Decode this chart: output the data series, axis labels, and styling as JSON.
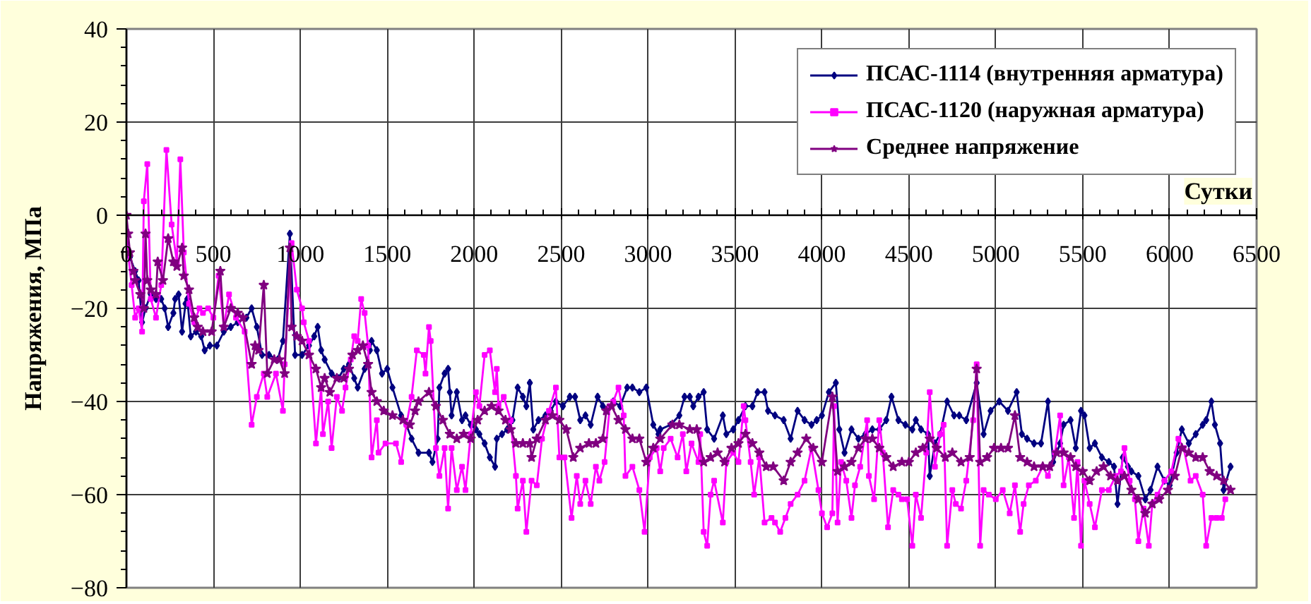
{
  "chart_data": {
    "type": "line",
    "xlabel": "Сутки",
    "ylabel": "Напряжения, МПа",
    "xlim": [
      0,
      6500
    ],
    "ylim": [
      -80,
      40
    ],
    "xticks": [
      0,
      500,
      1000,
      1500,
      2000,
      2500,
      3000,
      3500,
      4000,
      4500,
      5000,
      5500,
      6000,
      6500
    ],
    "yticks": [
      -80,
      -60,
      -40,
      -20,
      0,
      20,
      40
    ],
    "grid": true,
    "legend": "top right",
    "line_style": "solid",
    "series": [
      {
        "name": "ПСАС-1114 (внутренняя арматура)",
        "color": "#000080",
        "marker": "diamond",
        "x": [
          0,
          20,
          50,
          70,
          90,
          110,
          140,
          170,
          200,
          220,
          240,
          270,
          280,
          300,
          320,
          340,
          350,
          370,
          400,
          430,
          450,
          480,
          520,
          560,
          600,
          640,
          690,
          720,
          750,
          780,
          820,
          870,
          900,
          940,
          970,
          1010,
          1050,
          1080,
          1100,
          1120,
          1140,
          1180,
          1220,
          1250,
          1280,
          1310,
          1330,
          1370,
          1400,
          1410,
          1440,
          1470,
          1500,
          1530,
          1580,
          1610,
          1640,
          1680,
          1740,
          1760,
          1790,
          1800,
          1830,
          1850,
          1860,
          1870,
          1900,
          1930,
          1950,
          1980,
          2010,
          2030,
          2060,
          2090,
          2120,
          2130,
          2160,
          2190,
          2220,
          2250,
          2280,
          2300,
          2320,
          2340,
          2370,
          2410,
          2440,
          2470,
          2510,
          2550,
          2580,
          2610,
          2640,
          2670,
          2710,
          2740,
          2760,
          2800,
          2840,
          2880,
          2910,
          2950,
          2990,
          3030,
          3060,
          3070,
          3130,
          3180,
          3210,
          3240,
          3260,
          3290,
          3320,
          3340,
          3380,
          3430,
          3450,
          3490,
          3520,
          3560,
          3600,
          3630,
          3670,
          3690,
          3730,
          3780,
          3820,
          3860,
          3900,
          3940,
          3970,
          4000,
          4040,
          4080,
          4100,
          4130,
          4170,
          4210,
          4250,
          4290,
          4330,
          4370,
          4400,
          4440,
          4480,
          4520,
          4540,
          4570,
          4610,
          4620,
          4650,
          4680,
          4720,
          4760,
          4790,
          4830,
          4890,
          4930,
          4970,
          5020,
          5070,
          5120,
          5150,
          5180,
          5220,
          5260,
          5300,
          5330,
          5370,
          5390,
          5430,
          5460,
          5490,
          5510,
          5540,
          5570,
          5610,
          5650,
          5680,
          5700,
          5730,
          5760,
          5780,
          5820,
          5860,
          5890,
          5930,
          5970,
          6000,
          6040,
          6070,
          6110,
          6150,
          6190,
          6210,
          6240,
          6260,
          6290,
          6310,
          6350
        ],
        "values": [
          -6,
          -9,
          -12,
          -14,
          -23,
          -20,
          -17,
          -18,
          -18,
          -20,
          -24,
          -21,
          -18,
          -17,
          -25,
          -19,
          -18,
          -26,
          -25,
          -26,
          -29,
          -28,
          -28,
          -25,
          -24,
          -23,
          -22,
          -20,
          -24,
          -30,
          -30,
          -31,
          -27,
          -4,
          -30,
          -30,
          -28,
          -26,
          -24,
          -29,
          -31,
          -34,
          -35,
          -33,
          -32,
          -35,
          -37,
          -33,
          -29,
          -27,
          -29,
          -34,
          -33,
          -37,
          -43,
          -45,
          -48,
          -51,
          -51,
          -53,
          -48,
          -37,
          -34,
          -33,
          -38,
          -43,
          -38,
          -44,
          -43,
          -45,
          -46,
          -47,
          -49,
          -52,
          -54,
          -48,
          -47,
          -46,
          -44,
          -37,
          -39,
          -41,
          -36,
          -46,
          -44,
          -43,
          -42,
          -40,
          -41,
          -39,
          -39,
          -44,
          -43,
          -45,
          -39,
          -41,
          -42,
          -40,
          -41,
          -37,
          -37,
          -38,
          -37,
          -45,
          -47,
          -46,
          -45,
          -43,
          -39,
          -39,
          -41,
          -39,
          -38,
          -46,
          -48,
          -43,
          -47,
          -46,
          -44,
          -41,
          -41,
          -38,
          -38,
          -42,
          -43,
          -44,
          -48,
          -42,
          -44,
          -45,
          -44,
          -43,
          -38,
          -36,
          -46,
          -51,
          -46,
          -48,
          -47,
          -46,
          -46,
          -44,
          -39,
          -44,
          -45,
          -46,
          -44,
          -46,
          -47,
          -56,
          -49,
          -47,
          -40,
          -43,
          -43,
          -44,
          -36,
          -47,
          -42,
          -40,
          -42,
          -38,
          -47,
          -48,
          -49,
          -49,
          -40,
          -53,
          -49,
          -45,
          -44,
          -50,
          -42,
          -43,
          -50,
          -49,
          -52,
          -53,
          -54,
          -62,
          -52,
          -54,
          -55,
          -56,
          -61,
          -59,
          -54,
          -57,
          -58,
          -51,
          -46,
          -49,
          -47,
          -45,
          -44,
          -40,
          -45,
          -49,
          -59,
          -54
        ]
      },
      {
        "name": "ПСАС-1120 (наружная арматура)",
        "color": "#ff00ff",
        "marker": "square",
        "x": [
          0,
          30,
          50,
          70,
          90,
          100,
          120,
          140,
          170,
          200,
          230,
          260,
          290,
          310,
          330,
          360,
          390,
          420,
          440,
          470,
          500,
          530,
          560,
          590,
          630,
          680,
          720,
          750,
          790,
          810,
          860,
          900,
          910,
          950,
          980,
          1010,
          1020,
          1050,
          1090,
          1120,
          1130,
          1160,
          1180,
          1210,
          1240,
          1260,
          1290,
          1310,
          1330,
          1350,
          1370,
          1390,
          1410,
          1440,
          1450,
          1490,
          1550,
          1580,
          1610,
          1640,
          1670,
          1710,
          1720,
          1740,
          1750,
          1780,
          1800,
          1830,
          1850,
          1870,
          1900,
          1930,
          1950,
          1980,
          2010,
          2030,
          2060,
          2090,
          2120,
          2130,
          2140,
          2170,
          2210,
          2240,
          2250,
          2280,
          2300,
          2330,
          2360,
          2390,
          2430,
          2470,
          2490,
          2520,
          2560,
          2590,
          2610,
          2640,
          2670,
          2700,
          2720,
          2750,
          2780,
          2800,
          2830,
          2860,
          2870,
          2910,
          2950,
          2980,
          3010,
          3050,
          3070,
          3090,
          3130,
          3170,
          3200,
          3220,
          3250,
          3290,
          3300,
          3320,
          3340,
          3360,
          3380,
          3430,
          3450,
          3490,
          3520,
          3550,
          3560,
          3590,
          3610,
          3640,
          3670,
          3710,
          3730,
          3760,
          3790,
          3820,
          3860,
          3900,
          3940,
          3980,
          4000,
          4030,
          4060,
          4070,
          4090,
          4110,
          4140,
          4170,
          4190,
          4220,
          4260,
          4270,
          4300,
          4330,
          4350,
          4380,
          4410,
          4440,
          4460,
          4490,
          4520,
          4540,
          4570,
          4600,
          4620,
          4650,
          4680,
          4700,
          4720,
          4750,
          4770,
          4800,
          4830,
          4870,
          4890,
          4910,
          4930,
          4960,
          5000,
          5040,
          5080,
          5110,
          5140,
          5160,
          5190,
          5230,
          5270,
          5300,
          5340,
          5370,
          5390,
          5420,
          5450,
          5470,
          5490,
          5510,
          5540,
          5570,
          5610,
          5650,
          5690,
          5720,
          5740,
          5770,
          5800,
          5820,
          5850,
          5880,
          5900,
          5930,
          5970,
          6010,
          6050,
          6080,
          6120,
          6150,
          6190,
          6210,
          6240,
          6270,
          6300,
          6320
        ],
        "values": [
          -5,
          -15,
          -22,
          -20,
          -25,
          3,
          11,
          -18,
          -22,
          -15,
          14,
          -2,
          -10,
          12,
          -8,
          -19,
          -23,
          -20,
          -21,
          -20,
          -22,
          -13,
          -24,
          -17,
          -22,
          -25,
          -45,
          -39,
          -34,
          -39,
          -34,
          -42,
          -32,
          -6,
          -16,
          -20,
          -23,
          -27,
          -49,
          -37,
          -47,
          -40,
          -50,
          -39,
          -42,
          -37,
          -31,
          -26,
          -27,
          -18,
          -21,
          -28,
          -52,
          -44,
          -51,
          -49,
          -49,
          -53,
          -45,
          -39,
          -29,
          -30,
          -34,
          -24,
          -27,
          -50,
          -56,
          -50,
          -63,
          -50,
          -59,
          -54,
          -59,
          -47,
          -38,
          -41,
          -30,
          -29,
          -38,
          -33,
          -41,
          -39,
          -44,
          -56,
          -63,
          -57,
          -68,
          -57,
          -58,
          -48,
          -42,
          -37,
          -52,
          -52,
          -65,
          -56,
          -62,
          -57,
          -62,
          -54,
          -57,
          -53,
          -41,
          -40,
          -37,
          -43,
          -56,
          -54,
          -59,
          -68,
          -52,
          -50,
          -55,
          -50,
          -48,
          -52,
          -47,
          -55,
          -49,
          -53,
          -47,
          -68,
          -71,
          -60,
          -57,
          -66,
          -53,
          -51,
          -53,
          -41,
          -44,
          -53,
          -60,
          -52,
          -66,
          -65,
          -66,
          -68,
          -65,
          -62,
          -60,
          -57,
          -50,
          -59,
          -64,
          -67,
          -64,
          -41,
          -66,
          -53,
          -57,
          -65,
          -58,
          -54,
          -44,
          -56,
          -61,
          -44,
          -51,
          -67,
          -59,
          -60,
          -61,
          -61,
          -71,
          -60,
          -65,
          -51,
          -38,
          -54,
          -47,
          -45,
          -71,
          -59,
          -62,
          -63,
          -57,
          -44,
          -32,
          -71,
          -59,
          -60,
          -61,
          -59,
          -64,
          -58,
          -68,
          -62,
          -58,
          -57,
          -54,
          -56,
          -51,
          -43,
          -58,
          -52,
          -65,
          -53,
          -71,
          -57,
          -62,
          -67,
          -59,
          -59,
          -56,
          -55,
          -50,
          -57,
          -61,
          -70,
          -63,
          -71,
          -62,
          -60,
          -57,
          -55,
          -48,
          -50,
          -57,
          -56,
          -60,
          -71,
          -65,
          -65,
          -65,
          -61
        ]
      },
      {
        "name": "Среднее напряжение",
        "color": "#800080",
        "marker": "star",
        "x": [
          0,
          10,
          20,
          40,
          50,
          80,
          100,
          110,
          120,
          140,
          170,
          180,
          210,
          240,
          270,
          290,
          320,
          330,
          360,
          390,
          410,
          440,
          490,
          540,
          560,
          600,
          640,
          670,
          720,
          740,
          760,
          790,
          810,
          850,
          880,
          910,
          940,
          950,
          980,
          1010,
          1050,
          1090,
          1120,
          1140,
          1170,
          1210,
          1250,
          1280,
          1300,
          1330,
          1360,
          1390,
          1410,
          1440,
          1480,
          1530,
          1590,
          1630,
          1660,
          1680,
          1740,
          1780,
          1820,
          1860,
          1900,
          1940,
          1980,
          2020,
          2060,
          2100,
          2140,
          2180,
          2210,
          2240,
          2280,
          2320,
          2330,
          2360,
          2410,
          2450,
          2490,
          2530,
          2570,
          2610,
          2660,
          2700,
          2740,
          2760,
          2790,
          2830,
          2870,
          2910,
          2950,
          2990,
          3030,
          3070,
          3140,
          3180,
          3240,
          3280,
          3320,
          3360,
          3400,
          3440,
          3480,
          3520,
          3560,
          3600,
          3640,
          3680,
          3720,
          3780,
          3820,
          3860,
          3910,
          3950,
          4000,
          4060,
          4090,
          4130,
          4170,
          4210,
          4250,
          4290,
          4330,
          4370,
          4410,
          4460,
          4500,
          4540,
          4580,
          4620,
          4660,
          4710,
          4750,
          4800,
          4850,
          4890,
          4910,
          4950,
          4990,
          5030,
          5070,
          5110,
          5140,
          5180,
          5220,
          5270,
          5310,
          5350,
          5390,
          5430,
          5460,
          5500,
          5540,
          5580,
          5620,
          5660,
          5700,
          5740,
          5780,
          5820,
          5860,
          5900,
          5940,
          5990,
          6030,
          6070,
          6110,
          6150,
          6190,
          6230,
          6270,
          6310,
          6350
        ],
        "values": [
          0,
          -4,
          -8,
          -12,
          -14,
          -17,
          -20,
          -4,
          -14,
          -16,
          -17,
          -10,
          -14,
          -5,
          -10,
          -11,
          -7,
          -13,
          -16,
          -22,
          -24,
          -25,
          -25,
          -12,
          -24,
          -20,
          -21,
          -22,
          -32,
          -28,
          -29,
          -15,
          -34,
          -31,
          -31,
          -34,
          -7,
          -24,
          -26,
          -27,
          -30,
          -33,
          -37,
          -35,
          -38,
          -35,
          -35,
          -33,
          -30,
          -29,
          -28,
          -32,
          -38,
          -40,
          -42,
          -43,
          -44,
          -45,
          -42,
          -40,
          -38,
          -41,
          -44,
          -47,
          -48,
          -47,
          -48,
          -44,
          -42,
          -41,
          -42,
          -44,
          -46,
          -49,
          -49,
          -49,
          -52,
          -48,
          -44,
          -43,
          -44,
          -46,
          -52,
          -50,
          -49,
          -49,
          -48,
          -42,
          -41,
          -44,
          -46,
          -48,
          -48,
          -53,
          -50,
          -48,
          -45,
          -45,
          -46,
          -46,
          -53,
          -52,
          -51,
          -53,
          -50,
          -49,
          -47,
          -49,
          -51,
          -54,
          -54,
          -57,
          -53,
          -51,
          -48,
          -50,
          -53,
          -39,
          -55,
          -54,
          -53,
          -50,
          -48,
          -48,
          -50,
          -52,
          -54,
          -53,
          -53,
          -51,
          -50,
          -48,
          -50,
          -52,
          -51,
          -53,
          -52,
          -33,
          -53,
          -52,
          -50,
          -50,
          -50,
          -43,
          -52,
          -53,
          -54,
          -54,
          -54,
          -51,
          -51,
          -52,
          -54,
          -55,
          -57,
          -55,
          -54,
          -56,
          -57,
          -56,
          -59,
          -61,
          -64,
          -62,
          -61,
          -59,
          -56,
          -50,
          -51,
          -52,
          -52,
          -55,
          -56,
          -57,
          -59
        ]
      }
    ]
  }
}
